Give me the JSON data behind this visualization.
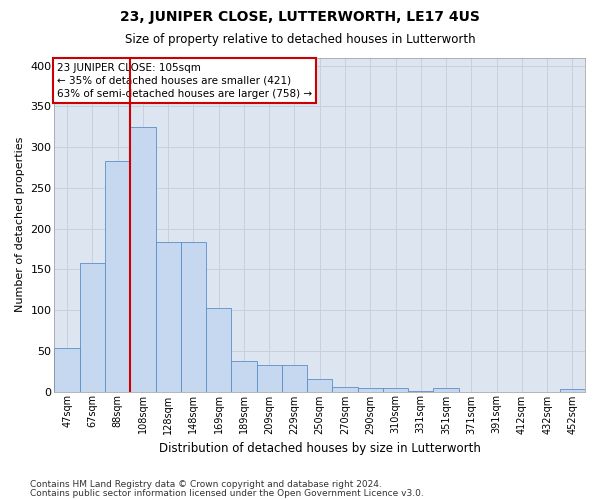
{
  "title": "23, JUNIPER CLOSE, LUTTERWORTH, LE17 4US",
  "subtitle": "Size of property relative to detached houses in Lutterworth",
  "xlabel": "Distribution of detached houses by size in Lutterworth",
  "ylabel": "Number of detached properties",
  "categories": [
    "47sqm",
    "67sqm",
    "88sqm",
    "108sqm",
    "128sqm",
    "148sqm",
    "169sqm",
    "189sqm",
    "209sqm",
    "229sqm",
    "250sqm",
    "270sqm",
    "290sqm",
    "310sqm",
    "331sqm",
    "351sqm",
    "371sqm",
    "391sqm",
    "412sqm",
    "432sqm",
    "452sqm"
  ],
  "values": [
    53,
    158,
    283,
    325,
    183,
    183,
    103,
    38,
    32,
    32,
    15,
    6,
    4,
    4,
    1,
    4,
    0,
    0,
    0,
    0,
    3
  ],
  "bar_color": "#c5d8ef",
  "bar_edge_color": "#5b8fc9",
  "vline_color": "#cc0000",
  "vline_x": 2.5,
  "annotation_text": "23 JUNIPER CLOSE: 105sqm\n← 35% of detached houses are smaller (421)\n63% of semi-detached houses are larger (758) →",
  "annotation_box_color": "#ffffff",
  "annotation_box_edge": "#cc0000",
  "ylim": [
    0,
    410
  ],
  "yticks": [
    0,
    50,
    100,
    150,
    200,
    250,
    300,
    350,
    400
  ],
  "grid_color": "#c8d0de",
  "bg_color": "#dde5f0",
  "footer_line1": "Contains HM Land Registry data © Crown copyright and database right 2024.",
  "footer_line2": "Contains public sector information licensed under the Open Government Licence v3.0."
}
